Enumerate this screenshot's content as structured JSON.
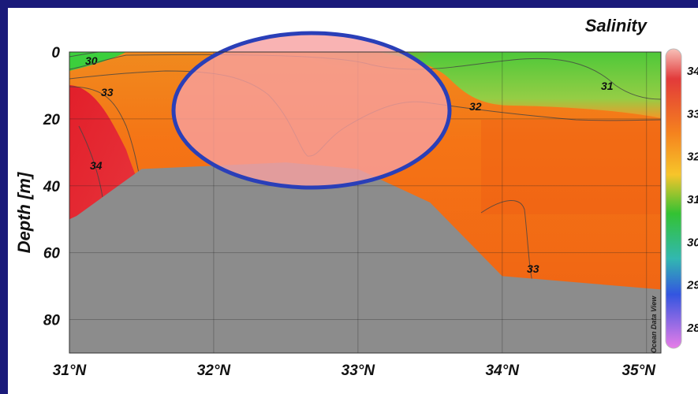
{
  "chart_data": {
    "type": "heatmap",
    "title": "Salinity",
    "ylabel": "Depth [m]",
    "xlabel": "",
    "watermark": "Ocean Data View",
    "x_ticks": [
      "31°N",
      "32°N",
      "33°N",
      "34°N",
      "35°N"
    ],
    "y_ticks": [
      "0",
      "20",
      "40",
      "60",
      "80"
    ],
    "xlim": [
      31.0,
      35.1
    ],
    "ylim": [
      90,
      0
    ],
    "colorbar": {
      "ticks": [
        "34",
        "33",
        "32",
        "31",
        "30",
        "29",
        "28"
      ],
      "range": [
        27.5,
        34.5
      ]
    },
    "contours": [
      {
        "label": "30",
        "value": 30
      },
      {
        "label": "31",
        "value": 31
      },
      {
        "label": "32",
        "value": 32
      },
      {
        "label": "33",
        "value": 33
      },
      {
        "label": "34",
        "value": 34
      }
    ],
    "bathymetry": [
      [
        31.0,
        50
      ],
      [
        31.05,
        49
      ],
      [
        31.5,
        35
      ],
      [
        32.5,
        33
      ],
      [
        33.0,
        35
      ],
      [
        33.5,
        45
      ],
      [
        34.0,
        67
      ],
      [
        35.1,
        71
      ]
    ],
    "highlight": "ellipse",
    "colors": {
      "background": "#1a1a7a",
      "land": "#8c8c8c",
      "highlight_fill": "#f8a0a0",
      "highlight_stroke": "#2a3fb8"
    }
  }
}
